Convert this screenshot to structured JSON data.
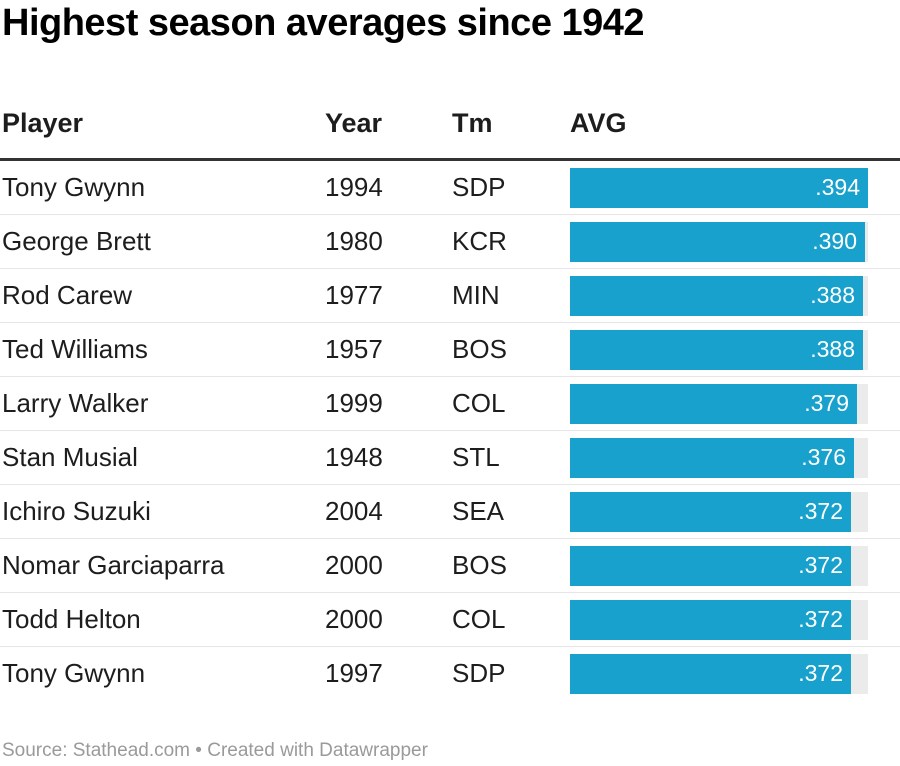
{
  "title": "Highest season averages since 1942",
  "footer": {
    "source": "Source: Stathead.com",
    "separator": " • ",
    "credit": "Created with Datawrapper"
  },
  "colors": {
    "bar": "#18a1cd",
    "bar_track": "#ebebeb",
    "header_rule": "#333333"
  },
  "chart_data": {
    "type": "table",
    "columns": [
      "Player",
      "Year",
      "Tm",
      "AVG"
    ],
    "avg_range": [
      0,
      0.394
    ],
    "rows": [
      {
        "player": "Tony Gwynn",
        "year": "1994",
        "team": "SDP",
        "avg": 0.394,
        "avg_label": ".394"
      },
      {
        "player": "George Brett",
        "year": "1980",
        "team": "KCR",
        "avg": 0.39,
        "avg_label": ".390"
      },
      {
        "player": "Rod Carew",
        "year": "1977",
        "team": "MIN",
        "avg": 0.388,
        "avg_label": ".388"
      },
      {
        "player": "Ted Williams",
        "year": "1957",
        "team": "BOS",
        "avg": 0.388,
        "avg_label": ".388"
      },
      {
        "player": "Larry Walker",
        "year": "1999",
        "team": "COL",
        "avg": 0.379,
        "avg_label": ".379"
      },
      {
        "player": "Stan Musial",
        "year": "1948",
        "team": "STL",
        "avg": 0.376,
        "avg_label": ".376"
      },
      {
        "player": "Ichiro Suzuki",
        "year": "2004",
        "team": "SEA",
        "avg": 0.372,
        "avg_label": ".372"
      },
      {
        "player": "Nomar Garciaparra",
        "year": "2000",
        "team": "BOS",
        "avg": 0.372,
        "avg_label": ".372"
      },
      {
        "player": "Todd Helton",
        "year": "2000",
        "team": "COL",
        "avg": 0.372,
        "avg_label": ".372"
      },
      {
        "player": "Tony Gwynn",
        "year": "1997",
        "team": "SDP",
        "avg": 0.372,
        "avg_label": ".372"
      }
    ]
  }
}
